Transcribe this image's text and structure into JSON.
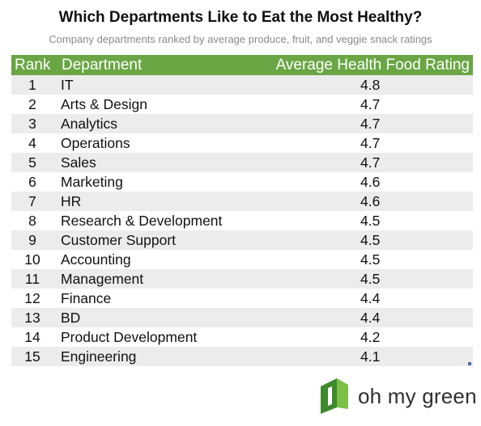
{
  "title": "Which Departments Like to Eat the Most Healthy?",
  "subtitle": "Company departments ranked by average produce, fruit, and veggie snack ratings",
  "colors": {
    "header_bg": "#6aa644",
    "row_shade": "#ececec",
    "logo_green_dark": "#3d8a2e",
    "logo_green_light": "#7cc04a"
  },
  "brand": {
    "logo_text": "oh my green",
    "logo_icon": "leaf-block-icon"
  },
  "chart_data": {
    "type": "table",
    "title": "Which Departments Like to Eat the Most Healthy?",
    "subtitle": "Company departments ranked by average produce, fruit, and veggie snack ratings",
    "columns": [
      "Rank",
      "Department",
      "Average Health Food Rating"
    ],
    "rows": [
      {
        "rank": "1",
        "department": "IT",
        "rating": "4.8"
      },
      {
        "rank": "2",
        "department": "Arts & Design",
        "rating": "4.7"
      },
      {
        "rank": "3",
        "department": "Analytics",
        "rating": "4.7"
      },
      {
        "rank": "4",
        "department": "Operations",
        "rating": "4.7"
      },
      {
        "rank": "5",
        "department": "Sales",
        "rating": "4.7"
      },
      {
        "rank": "6",
        "department": "Marketing",
        "rating": "4.6"
      },
      {
        "rank": "7",
        "department": "HR",
        "rating": "4.6"
      },
      {
        "rank": "8",
        "department": "Research & Development",
        "rating": "4.5"
      },
      {
        "rank": "9",
        "department": "Customer Support",
        "rating": "4.5"
      },
      {
        "rank": "10",
        "department": "Accounting",
        "rating": "4.5"
      },
      {
        "rank": "11",
        "department": "Management",
        "rating": "4.5"
      },
      {
        "rank": "12",
        "department": "Finance",
        "rating": "4.4"
      },
      {
        "rank": "13",
        "department": "BD",
        "rating": "4.4"
      },
      {
        "rank": "14",
        "department": "Product Development",
        "rating": "4.2"
      },
      {
        "rank": "15",
        "department": "Engineering",
        "rating": "4.1"
      }
    ]
  }
}
